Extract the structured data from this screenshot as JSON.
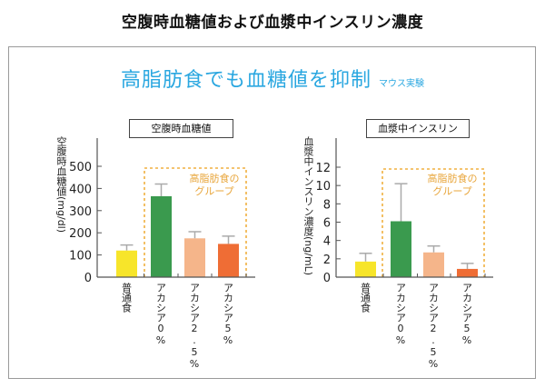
{
  "page": {
    "title": "空腹時血糖値および血漿中インスリン濃度",
    "headline": "高脂肪食でも血糖値を抑制",
    "headline_sub": "マウス実験",
    "headline_color": "#2aa7e0"
  },
  "group_box_label_line1": "高脂肪食の",
  "group_box_label_line2": "グループ",
  "group_box_color": "#f0b040",
  "chart_data": [
    {
      "type": "bar",
      "title": "空腹時血糖値",
      "ylabel": "空腹時血糖値(mg/dl)",
      "xlabel": "",
      "categories": [
        "普通食",
        "アカシア0%",
        "アカシア2.5%",
        "アカシア5%"
      ],
      "values": [
        120,
        365,
        175,
        150
      ],
      "error_upper": [
        145,
        420,
        205,
        185
      ],
      "colors": [
        "#f7e52a",
        "#3a9a4e",
        "#f5b58a",
        "#ef6d35"
      ],
      "ylim": [
        0,
        600
      ],
      "yticks": [
        0,
        100,
        200,
        300,
        400,
        500
      ],
      "grid": false,
      "group_box": {
        "from_category": 1,
        "to_category": 3,
        "label": "高脂肪食のグループ"
      }
    },
    {
      "type": "bar",
      "title": "血漿中インスリン",
      "ylabel": "血漿中インスリン濃度(ng/mL)",
      "xlabel": "",
      "categories": [
        "普通食",
        "アカシア0%",
        "アカシア2.5%",
        "アカシア5%"
      ],
      "values": [
        1.7,
        6.1,
        2.7,
        0.9
      ],
      "error_upper": [
        2.6,
        10.2,
        3.4,
        1.5
      ],
      "colors": [
        "#f7e52a",
        "#3a9a4e",
        "#f5b58a",
        "#ef6d35"
      ],
      "ylim": [
        0,
        14.4
      ],
      "yticks": [
        0,
        2,
        4,
        6,
        8,
        10,
        12
      ],
      "grid": false,
      "group_box": {
        "from_category": 1,
        "to_category": 3,
        "label": "高脂肪食のグループ"
      }
    }
  ]
}
